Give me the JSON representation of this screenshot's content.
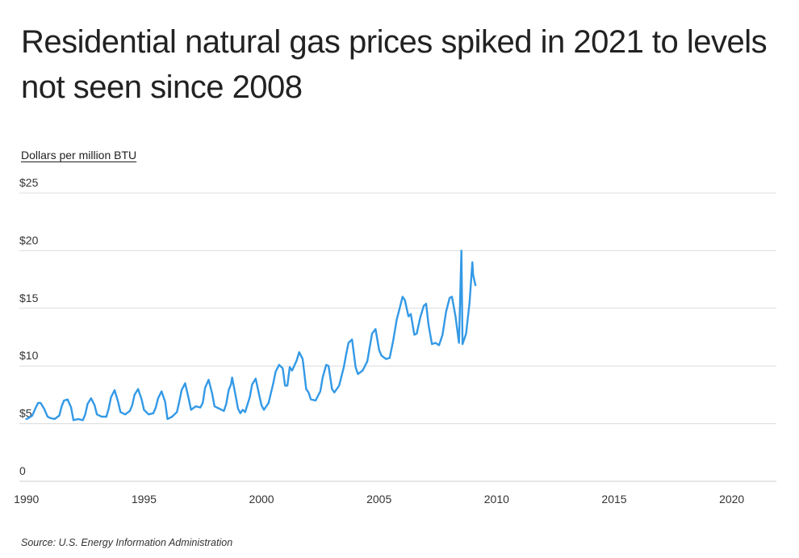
{
  "chart_data": {
    "type": "line",
    "title": "Residential natural gas prices spiked in 2021 to levels not seen since 2008",
    "ylabel": "Dollars per million BTU",
    "source": "Source:  U.S. Energy Information Administration",
    "ylim": [
      0,
      25
    ],
    "xlim": [
      1989.7,
      2021.9
    ],
    "y_ticks": [
      {
        "value": 0,
        "label": "0"
      },
      {
        "value": 5,
        "label": "$5"
      },
      {
        "value": 10,
        "label": "$10"
      },
      {
        "value": 15,
        "label": "$15"
      },
      {
        "value": 20,
        "label": "$20"
      },
      {
        "value": 25,
        "label": "$25"
      }
    ],
    "x_ticks": [
      {
        "value": 1990,
        "label": "1990"
      },
      {
        "value": 1995,
        "label": "1995"
      },
      {
        "value": 2000,
        "label": "2000"
      },
      {
        "value": 2005,
        "label": "2005"
      },
      {
        "value": 2010,
        "label": "2010"
      },
      {
        "value": 2015,
        "label": "2015"
      },
      {
        "value": 2020,
        "label": "2020"
      }
    ],
    "grid": true,
    "line_color": "#3399e6",
    "series": [
      {
        "name": "",
        "points": [
          [
            1990.0,
            5.4
          ],
          [
            1990.1,
            5.5
          ],
          [
            1990.25,
            5.7
          ],
          [
            1990.4,
            6.4
          ],
          [
            1990.5,
            6.8
          ],
          [
            1990.6,
            6.8
          ],
          [
            1990.75,
            6.3
          ],
          [
            1990.9,
            5.6
          ],
          [
            1991.0,
            5.5
          ],
          [
            1991.2,
            5.4
          ],
          [
            1991.4,
            5.7
          ],
          [
            1991.5,
            6.5
          ],
          [
            1991.6,
            7.0
          ],
          [
            1991.75,
            7.1
          ],
          [
            1991.9,
            6.4
          ],
          [
            1992.0,
            5.3
          ],
          [
            1992.2,
            5.4
          ],
          [
            1992.4,
            5.3
          ],
          [
            1992.5,
            5.8
          ],
          [
            1992.6,
            6.7
          ],
          [
            1992.75,
            7.2
          ],
          [
            1992.9,
            6.6
          ],
          [
            1993.0,
            5.8
          ],
          [
            1993.2,
            5.6
          ],
          [
            1993.4,
            5.6
          ],
          [
            1993.5,
            6.3
          ],
          [
            1993.6,
            7.3
          ],
          [
            1993.75,
            7.9
          ],
          [
            1993.9,
            6.9
          ],
          [
            1994.0,
            6.0
          ],
          [
            1994.2,
            5.8
          ],
          [
            1994.4,
            6.1
          ],
          [
            1994.5,
            6.6
          ],
          [
            1994.6,
            7.5
          ],
          [
            1994.75,
            8.0
          ],
          [
            1994.9,
            7.1
          ],
          [
            1995.0,
            6.2
          ],
          [
            1995.2,
            5.8
          ],
          [
            1995.4,
            5.9
          ],
          [
            1995.5,
            6.4
          ],
          [
            1995.6,
            7.2
          ],
          [
            1995.75,
            7.8
          ],
          [
            1995.9,
            6.9
          ],
          [
            1996.0,
            5.4
          ],
          [
            1996.2,
            5.6
          ],
          [
            1996.4,
            6.0
          ],
          [
            1996.5,
            6.9
          ],
          [
            1996.6,
            7.9
          ],
          [
            1996.75,
            8.5
          ],
          [
            1996.9,
            7.2
          ],
          [
            1997.0,
            6.2
          ],
          [
            1997.2,
            6.5
          ],
          [
            1997.4,
            6.4
          ],
          [
            1997.5,
            6.8
          ],
          [
            1997.6,
            8.1
          ],
          [
            1997.75,
            8.8
          ],
          [
            1997.9,
            7.6
          ],
          [
            1998.0,
            6.5
          ],
          [
            1998.2,
            6.3
          ],
          [
            1998.4,
            6.1
          ],
          [
            1998.5,
            6.7
          ],
          [
            1998.6,
            7.9
          ],
          [
            1998.7,
            8.4
          ],
          [
            1998.75,
            9.0
          ],
          [
            1998.9,
            7.4
          ],
          [
            1999.0,
            6.3
          ],
          [
            1999.1,
            5.9
          ],
          [
            1999.2,
            6.2
          ],
          [
            1999.3,
            6.0
          ],
          [
            1999.5,
            7.3
          ],
          [
            1999.6,
            8.4
          ],
          [
            1999.75,
            8.9
          ],
          [
            1999.9,
            7.5
          ],
          [
            2000.0,
            6.6
          ],
          [
            2000.1,
            6.2
          ],
          [
            2000.3,
            6.8
          ],
          [
            2000.5,
            8.5
          ],
          [
            2000.6,
            9.5
          ],
          [
            2000.75,
            10.1
          ],
          [
            2000.9,
            9.8
          ],
          [
            2001.0,
            8.3
          ],
          [
            2001.1,
            8.3
          ],
          [
            2001.2,
            9.9
          ],
          [
            2001.3,
            9.6
          ],
          [
            2001.5,
            10.5
          ],
          [
            2001.6,
            11.2
          ],
          [
            2001.75,
            10.6
          ],
          [
            2001.9,
            8.0
          ],
          [
            2002.0,
            7.7
          ],
          [
            2002.1,
            7.1
          ],
          [
            2002.3,
            7.0
          ],
          [
            2002.5,
            7.8
          ],
          [
            2002.6,
            9.0
          ],
          [
            2002.75,
            10.1
          ],
          [
            2002.85,
            10.0
          ],
          [
            2003.0,
            8.0
          ],
          [
            2003.1,
            7.7
          ],
          [
            2003.3,
            8.3
          ],
          [
            2003.5,
            9.9
          ],
          [
            2003.6,
            11.0
          ],
          [
            2003.7,
            12.0
          ],
          [
            2003.85,
            12.3
          ],
          [
            2004.0,
            9.9
          ],
          [
            2004.1,
            9.3
          ],
          [
            2004.3,
            9.6
          ],
          [
            2004.5,
            10.4
          ],
          [
            2004.6,
            11.6
          ],
          [
            2004.7,
            12.8
          ],
          [
            2004.85,
            13.2
          ],
          [
            2005.0,
            11.4
          ],
          [
            2005.1,
            10.9
          ],
          [
            2005.3,
            10.6
          ],
          [
            2005.45,
            10.7
          ],
          [
            2005.6,
            12.2
          ],
          [
            2005.75,
            14.0
          ],
          [
            2005.9,
            15.2
          ],
          [
            2006.0,
            16.0
          ],
          [
            2006.1,
            15.7
          ],
          [
            2006.25,
            14.3
          ],
          [
            2006.35,
            14.5
          ],
          [
            2006.5,
            12.7
          ],
          [
            2006.6,
            12.8
          ],
          [
            2006.75,
            14.2
          ],
          [
            2006.9,
            15.2
          ],
          [
            2007.0,
            15.4
          ],
          [
            2007.1,
            13.6
          ],
          [
            2007.25,
            11.9
          ],
          [
            2007.4,
            12.0
          ],
          [
            2007.55,
            11.8
          ],
          [
            2007.7,
            12.7
          ],
          [
            2007.85,
            14.7
          ],
          [
            2008.0,
            15.9
          ],
          [
            2008.1,
            16.0
          ],
          [
            2008.25,
            14.3
          ],
          [
            2008.4,
            12.0
          ],
          [
            2008.55,
            11.9
          ],
          [
            2008.7,
            12.8
          ],
          [
            2008.85,
            15.5
          ],
          [
            2009.0,
            17.9
          ],
          [
            2009.1,
            17.0
          ],
          [
            2008.97,
            19.0
          ],
          [
            2008.5,
            20.0
          ]
        ]
      }
    ]
  }
}
